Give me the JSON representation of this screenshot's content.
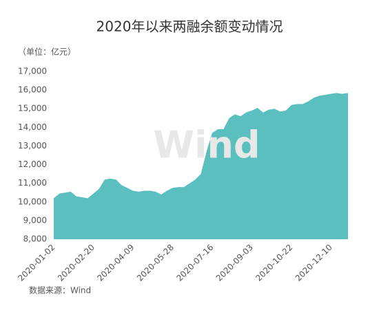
{
  "chart_data": {
    "type": "area",
    "title": "2020年以来两融余额变动情况",
    "subtitle": "（单位：亿元）",
    "source": "数据来源：Wind",
    "watermark": "Wind",
    "color": "#5cbfbf",
    "categories": [
      "2020-01-02",
      null,
      null,
      null,
      null,
      null,
      null,
      "2020-02-20",
      null,
      null,
      null,
      null,
      null,
      null,
      "2020-04-09",
      null,
      null,
      null,
      null,
      null,
      null,
      "2020-05-28",
      null,
      null,
      null,
      null,
      null,
      null,
      "2020-07-16",
      null,
      null,
      null,
      null,
      null,
      null,
      "2020-09-03",
      null,
      null,
      null,
      null,
      null,
      null,
      "2020-10-22",
      null,
      null,
      null,
      null,
      null,
      null,
      "2020-12-10",
      null,
      null,
      null
    ],
    "values": [
      10200,
      10450,
      10500,
      10550,
      10300,
      10250,
      10200,
      10450,
      10700,
      11200,
      11250,
      11200,
      10900,
      10750,
      10600,
      10550,
      10600,
      10600,
      10550,
      10400,
      10600,
      10750,
      10800,
      10800,
      11000,
      11200,
      11500,
      12700,
      13700,
      13900,
      13900,
      14500,
      14700,
      14600,
      14800,
      14900,
      15050,
      14800,
      14950,
      15000,
      14850,
      14900,
      15200,
      15250,
      15250,
      15400,
      15600,
      15700,
      15750,
      15800,
      15850,
      15800,
      15850
    ],
    "ylim": [
      8000,
      17000
    ],
    "yticks": [
      {
        "value": 8000,
        "label": "8,000"
      },
      {
        "value": 9000,
        "label": "9,000"
      },
      {
        "value": 10000,
        "label": "10,000"
      },
      {
        "value": 11000,
        "label": "11,000"
      },
      {
        "value": 12000,
        "label": "12,000"
      },
      {
        "value": 13000,
        "label": "13,000"
      },
      {
        "value": 14000,
        "label": "14,000"
      },
      {
        "value": 15000,
        "label": "15,000"
      },
      {
        "value": 16000,
        "label": "16,000"
      },
      {
        "value": 17000,
        "label": "17,000"
      }
    ],
    "grid": false
  }
}
